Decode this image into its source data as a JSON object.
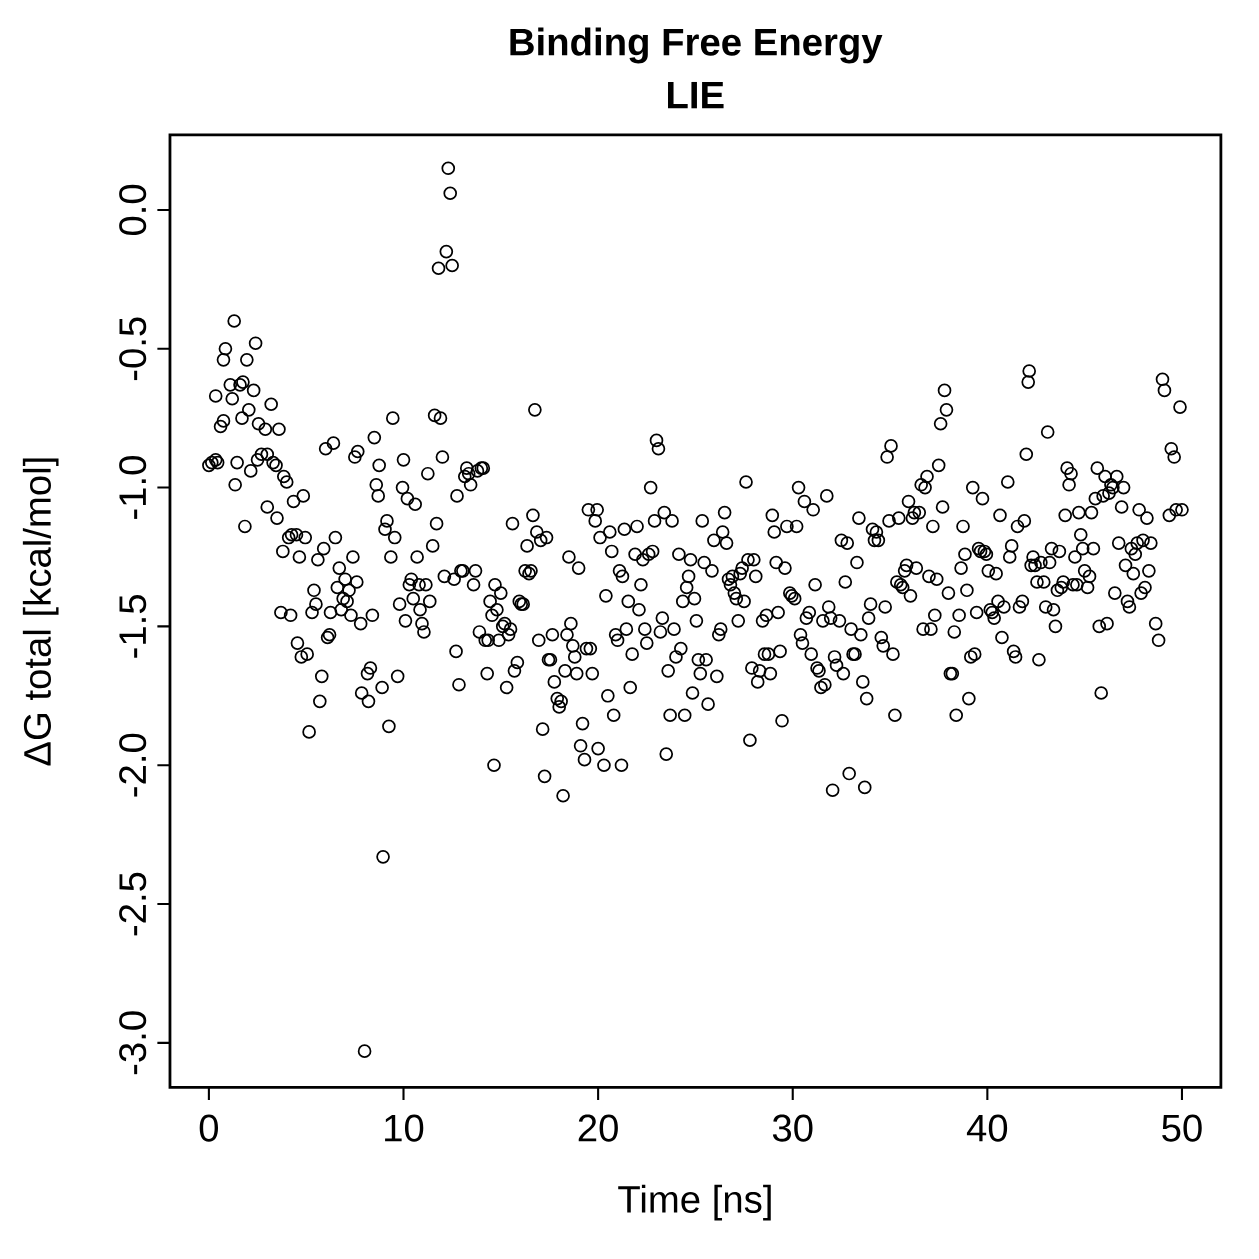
{
  "chart_data": {
    "type": "scatter",
    "title": "Binding Free Energy",
    "subtitle": "LIE",
    "xlabel": "Time [ns]",
    "ylabel": "ΔG total [kcal/mol]",
    "color": "#000000",
    "marker": "circle",
    "grid": false,
    "xlim": [
      -2,
      52
    ],
    "ylim": [
      -3.16,
      0.27
    ],
    "xticks": [
      0,
      10,
      20,
      30,
      40,
      50
    ],
    "yticks": [
      {
        "value": 0,
        "label": "0.0"
      },
      -0.5,
      {
        "value": -1,
        "label": "-1.0"
      },
      -1.5,
      {
        "value": -2,
        "label": "-2.0"
      },
      -2.5,
      {
        "value": -3,
        "label": "-3.0"
      }
    ],
    "x": [
      0,
      0.15,
      0.35,
      0.45,
      0.35,
      0.6,
      0.75,
      0.75,
      0.85,
      1.1,
      1.2,
      1.3,
      1.35,
      1.45,
      1.6,
      1.75,
      1.7,
      1.85,
      1.95,
      2.05,
      2.15,
      2.3,
      2.4,
      2.55,
      2.5,
      2.7,
      2.9,
      3.0,
      3.0,
      3.2,
      3.3,
      3.45,
      3.5,
      3.6,
      3.7,
      3.8,
      3.85,
      4.0,
      4.1,
      4.2,
      4.25,
      4.35,
      4.5,
      4.55,
      4.65,
      4.75,
      4.85,
      4.95,
      5.05,
      5.15,
      5.3,
      5.4,
      5.5,
      5.6,
      5.7,
      5.8,
      5.9,
      6.0,
      6.1,
      6.2,
      6.25,
      6.4,
      6.5,
      6.6,
      6.7,
      6.8,
      6.9,
      7.0,
      7.1,
      7.2,
      7.3,
      7.4,
      7.5,
      7.6,
      7.65,
      7.8,
      7.85,
      8.0,
      8.15,
      8.2,
      8.3,
      8.4,
      8.5,
      8.6,
      8.7,
      8.75,
      8.95,
      8.9,
      9.05,
      9.15,
      9.25,
      9.35,
      9.45,
      9.55,
      9.7,
      9.8,
      9.95,
      10.0,
      10.1,
      10.2,
      10.3,
      10.4,
      10.5,
      10.6,
      10.7,
      10.8,
      10.85,
      10.95,
      11.05,
      11.15,
      11.25,
      11.35,
      11.5,
      11.6,
      11.7,
      11.8,
      11.9,
      12.0,
      12.1,
      12.2,
      12.3,
      12.4,
      12.5,
      12.6,
      12.7,
      12.75,
      12.85,
      12.95,
      13.05,
      13.15,
      13.25,
      13.35,
      13.45,
      13.6,
      13.7,
      13.8,
      13.9,
      14.0,
      14.1,
      14.2,
      14.3,
      14.35,
      14.45,
      14.55,
      14.65,
      14.7,
      14.8,
      14.9,
      15.0,
      15.1,
      15.2,
      15.3,
      15.4,
      15.5,
      15.6,
      15.7,
      15.85,
      15.95,
      16.05,
      16.15,
      16.25,
      16.35,
      16.45,
      16.55,
      16.65,
      16.75,
      16.85,
      16.95,
      17.05,
      17.15,
      17.25,
      17.35,
      17.45,
      17.55,
      17.65,
      17.75,
      17.9,
      18.0,
      18.1,
      18.2,
      18.3,
      18.4,
      18.5,
      18.6,
      18.7,
      18.8,
      18.9,
      19.0,
      19.1,
      19.2,
      19.3,
      19.4,
      19.5,
      19.6,
      19.7,
      19.85,
      19.95,
      20.0,
      20.1,
      20.3,
      20.4,
      20.5,
      20.6,
      20.7,
      20.8,
      20.9,
      21.0,
      21.1,
      21.2,
      21.25,
      21.35,
      21.45,
      21.55,
      21.65,
      21.75,
      21.9,
      22.0,
      22.1,
      22.2,
      22.3,
      22.4,
      22.5,
      22.6,
      22.7,
      22.8,
      22.9,
      23.0,
      23.1,
      23.2,
      23.3,
      23.4,
      23.5,
      23.6,
      23.7,
      23.8,
      23.9,
      24.0,
      24.15,
      24.25,
      24.35,
      24.45,
      24.55,
      24.65,
      24.75,
      24.85,
      24.95,
      25.05,
      25.15,
      25.25,
      25.35,
      25.45,
      25.55,
      25.65,
      25.85,
      25.95,
      26.1,
      26.2,
      26.3,
      26.4,
      26.5,
      26.6,
      26.7,
      26.8,
      26.9,
      27.0,
      27.1,
      27.2,
      27.3,
      27.4,
      27.5,
      27.6,
      27.7,
      27.8,
      27.9,
      28.0,
      28.1,
      28.2,
      28.3,
      28.45,
      28.55,
      28.65,
      28.75,
      28.85,
      28.95,
      29.05,
      29.15,
      29.25,
      29.35,
      29.45,
      29.6,
      29.7,
      29.85,
      29.95,
      30.1,
      30.2,
      30.3,
      30.4,
      30.5,
      30.6,
      30.7,
      30.85,
      30.95,
      31.05,
      31.15,
      31.25,
      31.35,
      31.45,
      31.55,
      31.65,
      31.75,
      31.85,
      31.95,
      32.05,
      32.15,
      32.25,
      32.4,
      32.5,
      32.6,
      32.7,
      32.8,
      32.9,
      33.0,
      33.1,
      33.2,
      33.3,
      33.4,
      33.5,
      33.6,
      33.7,
      33.8,
      33.9,
      34.0,
      34.1,
      34.2,
      34.3,
      34.4,
      34.55,
      34.65,
      34.75,
      34.85,
      34.95,
      35.05,
      35.15,
      35.25,
      35.35,
      35.45,
      35.55,
      35.65,
      35.75,
      35.85,
      35.95,
      36.05,
      36.15,
      36.25,
      36.35,
      36.5,
      36.6,
      36.7,
      36.8,
      36.9,
      37.0,
      37.1,
      37.2,
      37.3,
      37.4,
      37.5,
      37.6,
      37.7,
      37.8,
      37.9,
      38.0,
      38.1,
      38.2,
      38.3,
      38.4,
      38.55,
      38.65,
      38.75,
      38.85,
      38.95,
      39.05,
      39.15,
      39.25,
      39.35,
      39.45,
      39.55,
      39.65,
      39.75,
      39.85,
      39.95,
      40.05,
      40.15,
      40.25,
      40.35,
      40.45,
      40.55,
      40.65,
      40.75,
      40.85,
      41.05,
      41.15,
      41.25,
      41.35,
      41.45,
      41.55,
      41.65,
      41.8,
      41.9,
      42.0,
      42.1,
      42.15,
      42.25,
      42.35,
      42.45,
      42.55,
      42.65,
      42.75,
      42.9,
      43.0,
      43.1,
      43.2,
      43.3,
      43.4,
      43.5,
      43.6,
      43.7,
      43.8,
      43.9,
      44.0,
      44.1,
      44.2,
      44.3,
      44.4,
      44.5,
      44.6,
      44.7,
      44.8,
      44.9,
      45.0,
      45.15,
      45.25,
      45.35,
      45.45,
      45.55,
      45.65,
      45.75,
      45.85,
      45.95,
      46.05,
      46.15,
      46.25,
      46.35,
      46.45,
      46.55,
      46.65,
      46.75,
      46.9,
      47.0,
      47.1,
      47.2,
      47.3,
      47.4,
      47.5,
      47.6,
      47.7,
      47.8,
      47.9,
      48.0,
      48.1,
      48.2,
      48.3,
      48.4,
      48.65,
      48.8,
      49.0,
      49.1,
      49.35,
      49.45,
      49.6,
      49.7,
      49.9,
      50.0
    ],
    "values": [
      -0.92,
      -0.91,
      -0.9,
      -0.91,
      -0.67,
      -0.78,
      -0.76,
      -0.54,
      -0.5,
      -0.63,
      -0.68,
      -0.4,
      -0.99,
      -0.91,
      -0.63,
      -0.62,
      -0.75,
      -1.14,
      -0.54,
      -0.72,
      -0.94,
      -0.65,
      -0.48,
      -0.77,
      -0.9,
      -0.88,
      -0.79,
      -1.07,
      -0.88,
      -0.7,
      -0.91,
      -0.92,
      -1.11,
      -0.79,
      -1.45,
      -1.23,
      -0.96,
      -0.98,
      -1.18,
      -1.46,
      -1.17,
      -1.05,
      -1.17,
      -1.56,
      -1.25,
      -1.61,
      -1.03,
      -1.18,
      -1.6,
      -1.88,
      -1.45,
      -1.37,
      -1.42,
      -1.26,
      -1.77,
      -1.68,
      -1.22,
      -0.86,
      -1.54,
      -1.53,
      -1.45,
      -0.84,
      -1.18,
      -1.36,
      -1.29,
      -1.44,
      -1.4,
      -1.33,
      -1.41,
      -1.37,
      -1.46,
      -1.25,
      -0.89,
      -1.34,
      -0.87,
      -1.49,
      -1.74,
      -3.03,
      -1.67,
      -1.77,
      -1.65,
      -1.46,
      -0.82,
      -0.99,
      -1.03,
      -0.92,
      -2.33,
      -1.72,
      -1.15,
      -1.12,
      -1.86,
      -1.25,
      -0.75,
      -1.18,
      -1.68,
      -1.42,
      -1.0,
      -0.9,
      -1.48,
      -1.04,
      -1.35,
      -1.33,
      -1.4,
      -1.06,
      -1.25,
      -1.35,
      -1.44,
      -1.49,
      -1.52,
      -1.35,
      -0.95,
      -1.41,
      -1.21,
      -0.74,
      -1.13,
      -0.21,
      -0.75,
      -0.89,
      -1.32,
      -0.15,
      0.15,
      0.06,
      -0.2,
      -1.33,
      -1.59,
      -1.03,
      -1.71,
      -1.3,
      -1.3,
      -0.96,
      -0.93,
      -0.95,
      -0.99,
      -1.35,
      -1.3,
      -0.94,
      -1.52,
      -0.93,
      -0.93,
      -1.55,
      -1.67,
      -1.55,
      -1.41,
      -1.46,
      -2.0,
      -1.35,
      -1.44,
      -1.55,
      -1.38,
      -1.5,
      -1.49,
      -1.72,
      -1.53,
      -1.51,
      -1.13,
      -1.66,
      -1.63,
      -1.41,
      -1.42,
      -1.42,
      -1.3,
      -1.21,
      -1.31,
      -1.3,
      -1.1,
      -0.72,
      -1.16,
      -1.55,
      -1.19,
      -1.87,
      -2.04,
      -1.18,
      -1.62,
      -1.62,
      -1.53,
      -1.7,
      -1.76,
      -1.79,
      -1.77,
      -2.11,
      -1.66,
      -1.53,
      -1.25,
      -1.49,
      -1.57,
      -1.61,
      -1.67,
      -1.29,
      -1.93,
      -1.85,
      -1.98,
      -1.58,
      -1.08,
      -1.58,
      -1.67,
      -1.12,
      -1.08,
      -1.94,
      -1.18,
      -2.0,
      -1.39,
      -1.75,
      -1.16,
      -1.23,
      -1.82,
      -1.53,
      -1.55,
      -1.3,
      -2.0,
      -1.32,
      -1.15,
      -1.51,
      -1.41,
      -1.72,
      -1.6,
      -1.24,
      -1.14,
      -1.44,
      -1.35,
      -1.26,
      -1.51,
      -1.56,
      -1.24,
      -1.0,
      -1.23,
      -1.12,
      -0.83,
      -0.86,
      -1.52,
      -1.47,
      -1.09,
      -1.96,
      -1.66,
      -1.82,
      -1.12,
      -1.51,
      -1.61,
      -1.24,
      -1.58,
      -1.41,
      -1.82,
      -1.36,
      -1.32,
      -1.26,
      -1.74,
      -1.4,
      -1.48,
      -1.62,
      -1.67,
      -1.12,
      -1.27,
      -1.62,
      -1.78,
      -1.3,
      -1.19,
      -1.68,
      -1.53,
      -1.51,
      -1.16,
      -1.09,
      -1.2,
      -1.33,
      -1.35,
      -1.32,
      -1.38,
      -1.4,
      -1.48,
      -1.31,
      -1.29,
      -1.41,
      -0.98,
      -1.26,
      -1.91,
      -1.65,
      -1.26,
      -1.32,
      -1.7,
      -1.66,
      -1.48,
      -1.6,
      -1.46,
      -1.6,
      -1.67,
      -1.1,
      -1.16,
      -1.27,
      -1.45,
      -1.59,
      -1.84,
      -1.29,
      -1.14,
      -1.38,
      -1.39,
      -1.4,
      -1.14,
      -1.0,
      -1.53,
      -1.56,
      -1.05,
      -1.47,
      -1.45,
      -1.6,
      -1.08,
      -1.35,
      -1.65,
      -1.66,
      -1.72,
      -1.48,
      -1.71,
      -1.03,
      -1.43,
      -1.47,
      -2.09,
      -1.61,
      -1.64,
      -1.48,
      -1.19,
      -1.67,
      -1.34,
      -1.2,
      -2.03,
      -1.51,
      -1.6,
      -1.6,
      -1.27,
      -1.11,
      -1.53,
      -1.7,
      -2.08,
      -1.76,
      -1.47,
      -1.42,
      -1.15,
      -1.19,
      -1.16,
      -1.19,
      -1.54,
      -1.57,
      -1.43,
      -0.89,
      -1.12,
      -0.85,
      -1.6,
      -1.82,
      -1.34,
      -1.11,
      -1.35,
      -1.36,
      -1.3,
      -1.28,
      -1.05,
      -1.39,
      -1.11,
      -1.09,
      -1.29,
      -1.09,
      -0.99,
      -1.51,
      -1.0,
      -0.96,
      -1.32,
      -1.51,
      -1.14,
      -1.46,
      -1.33,
      -0.92,
      -0.77,
      -1.07,
      -0.65,
      -0.72,
      -1.38,
      -1.67,
      -1.67,
      -1.52,
      -1.82,
      -1.46,
      -1.29,
      -1.14,
      -1.24,
      -1.37,
      -1.76,
      -1.61,
      -1.0,
      -1.6,
      -1.45,
      -1.22,
      -1.23,
      -1.04,
      -1.23,
      -1.24,
      -1.3,
      -1.44,
      -1.45,
      -1.47,
      -1.31,
      -1.41,
      -1.1,
      -1.54,
      -1.43,
      -0.98,
      -1.25,
      -1.21,
      -1.59,
      -1.61,
      -1.14,
      -1.43,
      -1.41,
      -1.12,
      -0.88,
      -0.62,
      -0.58,
      -1.28,
      -1.25,
      -1.28,
      -1.34,
      -1.62,
      -1.27,
      -1.34,
      -1.43,
      -0.8,
      -1.27,
      -1.22,
      -1.44,
      -1.5,
      -1.37,
      -1.23,
      -1.36,
      -1.34,
      -1.1,
      -0.93,
      -0.99,
      -0.95,
      -1.35,
      -1.25,
      -1.35,
      -1.09,
      -1.17,
      -1.22,
      -1.3,
      -1.36,
      -1.32,
      -1.09,
      -1.22,
      -1.04,
      -0.93,
      -1.5,
      -1.74,
      -1.03,
      -0.96,
      -1.49,
      -1.02,
      -0.99,
      -1.0,
      -1.38,
      -0.96,
      -1.2,
      -1.07,
      -1.0,
      -1.28,
      -1.41,
      -1.43,
      -1.22,
      -1.31,
      -1.24,
      -1.2,
      -1.08,
      -1.38,
      -1.19,
      -1.36,
      -1.11,
      -1.3,
      -1.2,
      -1.49,
      -1.55,
      -0.61,
      -0.65,
      -1.1,
      -0.86,
      -0.89,
      -1.08,
      -0.71,
      -1.08
    ]
  }
}
